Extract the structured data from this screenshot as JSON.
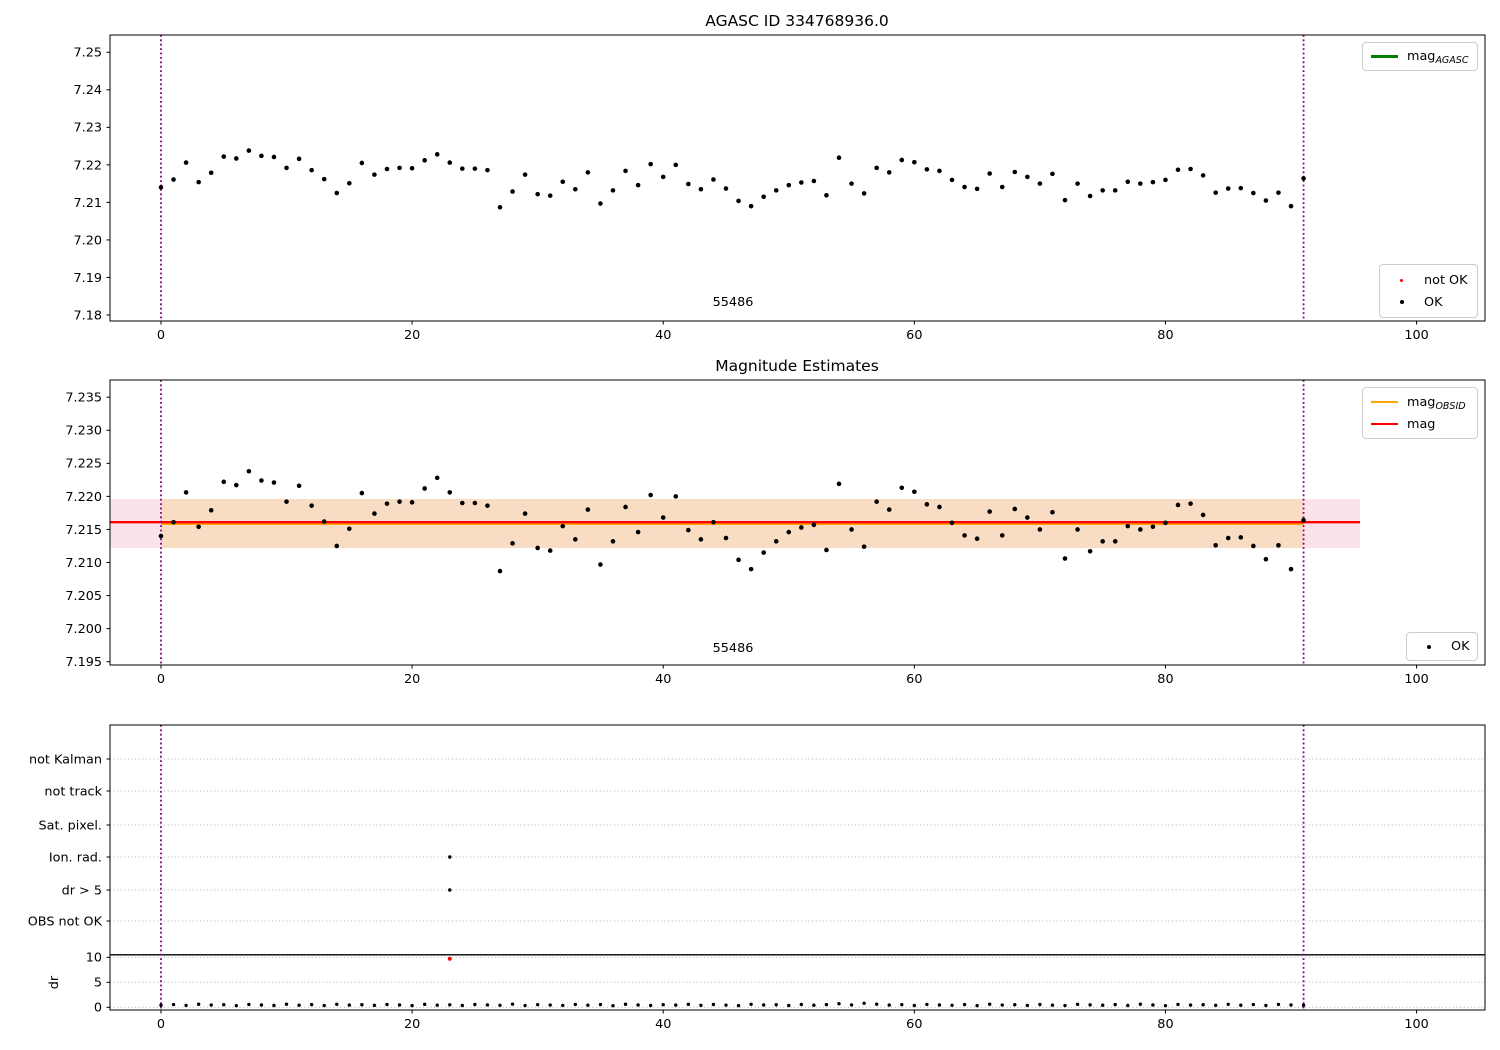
{
  "figure": {
    "background": "#ffffff"
  },
  "labels": {
    "top_title": "AGASC ID 334768936.0",
    "middle_title": "Magnitude Estimates",
    "obsid_top": "55486",
    "obsid_middle": "55486",
    "dr_ylabel": "dr"
  },
  "legends": {
    "mag_agasc": {
      "main": "mag",
      "sub": "AGASC"
    },
    "not_ok": {
      "label": "not OK"
    },
    "ok_top": {
      "label": "OK"
    },
    "mag_obsid": {
      "main": "mag",
      "sub": "OBSID"
    },
    "mag": {
      "label": "mag"
    },
    "ok_middle": {
      "label": "OK"
    }
  },
  "colors": {
    "vline_purple": "#800080",
    "mag_red": "#ff0000",
    "obsid_orange": "#ffa500",
    "agasc_green": "#008000",
    "ok_black": "#000000",
    "not_ok_red": "#ff0000",
    "band_pink": "#fce3e9",
    "band_orange": "#f9dcc4",
    "grid_gray": "#b0b0b0"
  },
  "chart_data": {
    "type": "scatter",
    "shared_x": [
      0,
      1,
      2,
      3,
      4,
      5,
      6,
      7,
      8,
      9,
      10,
      11,
      12,
      13,
      14,
      15,
      16,
      17,
      18,
      19,
      20,
      21,
      22,
      23,
      24,
      25,
      26,
      27,
      28,
      29,
      30,
      31,
      32,
      33,
      34,
      35,
      36,
      37,
      38,
      39,
      40,
      41,
      42,
      43,
      44,
      45,
      46,
      47,
      48,
      49,
      50,
      51,
      52,
      53,
      54,
      55,
      56,
      57,
      58,
      59,
      60,
      61,
      62,
      63,
      64,
      65,
      66,
      67,
      68,
      69,
      70,
      71,
      72,
      73,
      74,
      75,
      76,
      77,
      78,
      79,
      80,
      81,
      82,
      83,
      84,
      85,
      86,
      87,
      88,
      89,
      90,
      91
    ],
    "mag": [
      7.214,
      7.2161,
      7.2206,
      7.2154,
      7.2179,
      7.2222,
      7.2217,
      7.2238,
      7.2224,
      7.2221,
      7.2192,
      7.2216,
      7.2186,
      7.2162,
      7.2125,
      7.2151,
      7.2205,
      7.2174,
      7.2189,
      7.2192,
      7.2191,
      7.2212,
      7.2228,
      7.2206,
      7.219,
      7.219,
      7.2186,
      7.2087,
      7.2129,
      7.2174,
      7.2122,
      7.2118,
      7.2155,
      7.2135,
      7.218,
      7.2097,
      7.2132,
      7.2184,
      7.2146,
      7.2202,
      7.2168,
      7.22,
      7.2149,
      7.2135,
      7.2161,
      7.2137,
      7.2104,
      7.209,
      7.2115,
      7.2132,
      7.2146,
      7.2153,
      7.2157,
      7.2119,
      7.2219,
      7.215,
      7.2124,
      7.2192,
      7.218,
      7.2213,
      7.2207,
      7.2188,
      7.2184,
      7.216,
      7.2141,
      7.2136,
      7.2177,
      7.2141,
      7.2181,
      7.2168,
      7.215,
      7.2176,
      7.2106,
      7.215,
      7.2117,
      7.2132,
      7.2132,
      7.2155,
      7.215,
      7.2154,
      7.216,
      7.2187,
      7.2189,
      7.2172,
      7.2126,
      7.2137,
      7.2138,
      7.2125,
      7.2105,
      7.2126,
      7.209,
      7.2164
    ],
    "panels": [
      {
        "name": "agasc-mag",
        "title": "AGASC ID 334768936.0",
        "ylim": [
          7.1784,
          7.2546
        ],
        "yticks": [
          7.18,
          7.19,
          7.2,
          7.21,
          7.22,
          7.23,
          7.24,
          7.25
        ],
        "ytick_labels": [
          "7.18",
          "7.19",
          "7.20",
          "7.21",
          "7.22",
          "7.23",
          "7.24",
          "7.25"
        ],
        "xticks": [
          0,
          20,
          40,
          60,
          80,
          100
        ],
        "xtick_labels": [
          "0",
          "20",
          "40",
          "60",
          "80",
          "100"
        ],
        "vlines_x": [
          0,
          91
        ],
        "annotation": "55486",
        "legend_entries": [
          "mag_AGASC"
        ],
        "legend2_entries": [
          "not OK",
          "OK"
        ]
      },
      {
        "name": "magnitude-estimates",
        "title": "Magnitude Estimates",
        "ylim": [
          7.1945,
          7.2376
        ],
        "yticks": [
          7.195,
          7.2,
          7.205,
          7.21,
          7.215,
          7.22,
          7.225,
          7.23,
          7.235
        ],
        "ytick_labels": [
          "7.195",
          "7.200",
          "7.205",
          "7.210",
          "7.215",
          "7.220",
          "7.225",
          "7.230",
          "7.235"
        ],
        "xticks": [
          0,
          20,
          40,
          60,
          80,
          100
        ],
        "xtick_labels": [
          "0",
          "20",
          "40",
          "60",
          "80",
          "100"
        ],
        "vlines_x": [
          0,
          91
        ],
        "annotation": "55486",
        "mag_line": 7.2161,
        "mag_line_range": [
          -4.06,
          95.5
        ],
        "mag_band": [
          7.2122,
          7.2196
        ],
        "obsid_line": 7.2161,
        "obsid_range": [
          0,
          91
        ],
        "legend_entries": [
          "mag_OBSID",
          "mag"
        ],
        "legend2_entries": [
          "OK"
        ]
      },
      {
        "name": "flags-and-dr",
        "categories": [
          "not Kalman",
          "not track",
          "Sat. pixel.",
          "Ion. rad.",
          "dr > 5",
          "OBS not OK"
        ],
        "flag_points": [
          {
            "category": "Ion. rad.",
            "x": 23
          },
          {
            "category": "dr > 5",
            "x": 23
          }
        ],
        "dr_values": [
          0.42,
          0.55,
          0.38,
          0.61,
          0.45,
          0.52,
          0.33,
          0.58,
          0.47,
          0.36,
          0.62,
          0.41,
          0.54,
          0.35,
          0.6,
          0.44,
          0.51,
          0.39,
          0.57,
          0.46,
          0.34,
          0.59,
          0.43,
          0.5,
          0.37,
          0.56,
          0.48,
          0.4,
          0.63,
          0.35,
          0.53,
          0.45,
          0.38,
          0.58,
          0.42,
          0.55,
          0.33,
          0.61,
          0.47,
          0.36,
          0.52,
          0.44,
          0.59,
          0.39,
          0.56,
          0.43,
          0.34,
          0.6,
          0.46,
          0.51,
          0.37,
          0.57,
          0.41,
          0.54,
          0.72,
          0.48,
          0.8,
          0.62,
          0.44,
          0.53,
          0.36,
          0.58,
          0.47,
          0.4,
          0.55,
          0.34,
          0.61,
          0.45,
          0.52,
          0.38,
          0.56,
          0.43,
          0.35,
          0.59,
          0.49,
          0.41,
          0.54,
          0.37,
          0.62,
          0.46,
          0.33,
          0.57,
          0.44,
          0.51,
          0.39,
          0.6,
          0.42,
          0.55,
          0.36,
          0.58,
          0.47,
          0.4
        ],
        "dr_not_ok": [
          {
            "x": 23,
            "dr": 9.7
          }
        ],
        "dr_ticks": [
          0,
          5,
          10
        ],
        "dr_tick_labels": [
          "0",
          "5",
          "10"
        ],
        "dr_threshold": 10.5,
        "xticks": [
          0,
          20,
          40,
          60,
          80,
          100
        ],
        "xtick_labels": [
          "0",
          "20",
          "40",
          "60",
          "80",
          "100"
        ],
        "vlines_x": [
          0,
          91
        ],
        "ylabel": "dr"
      }
    ]
  }
}
